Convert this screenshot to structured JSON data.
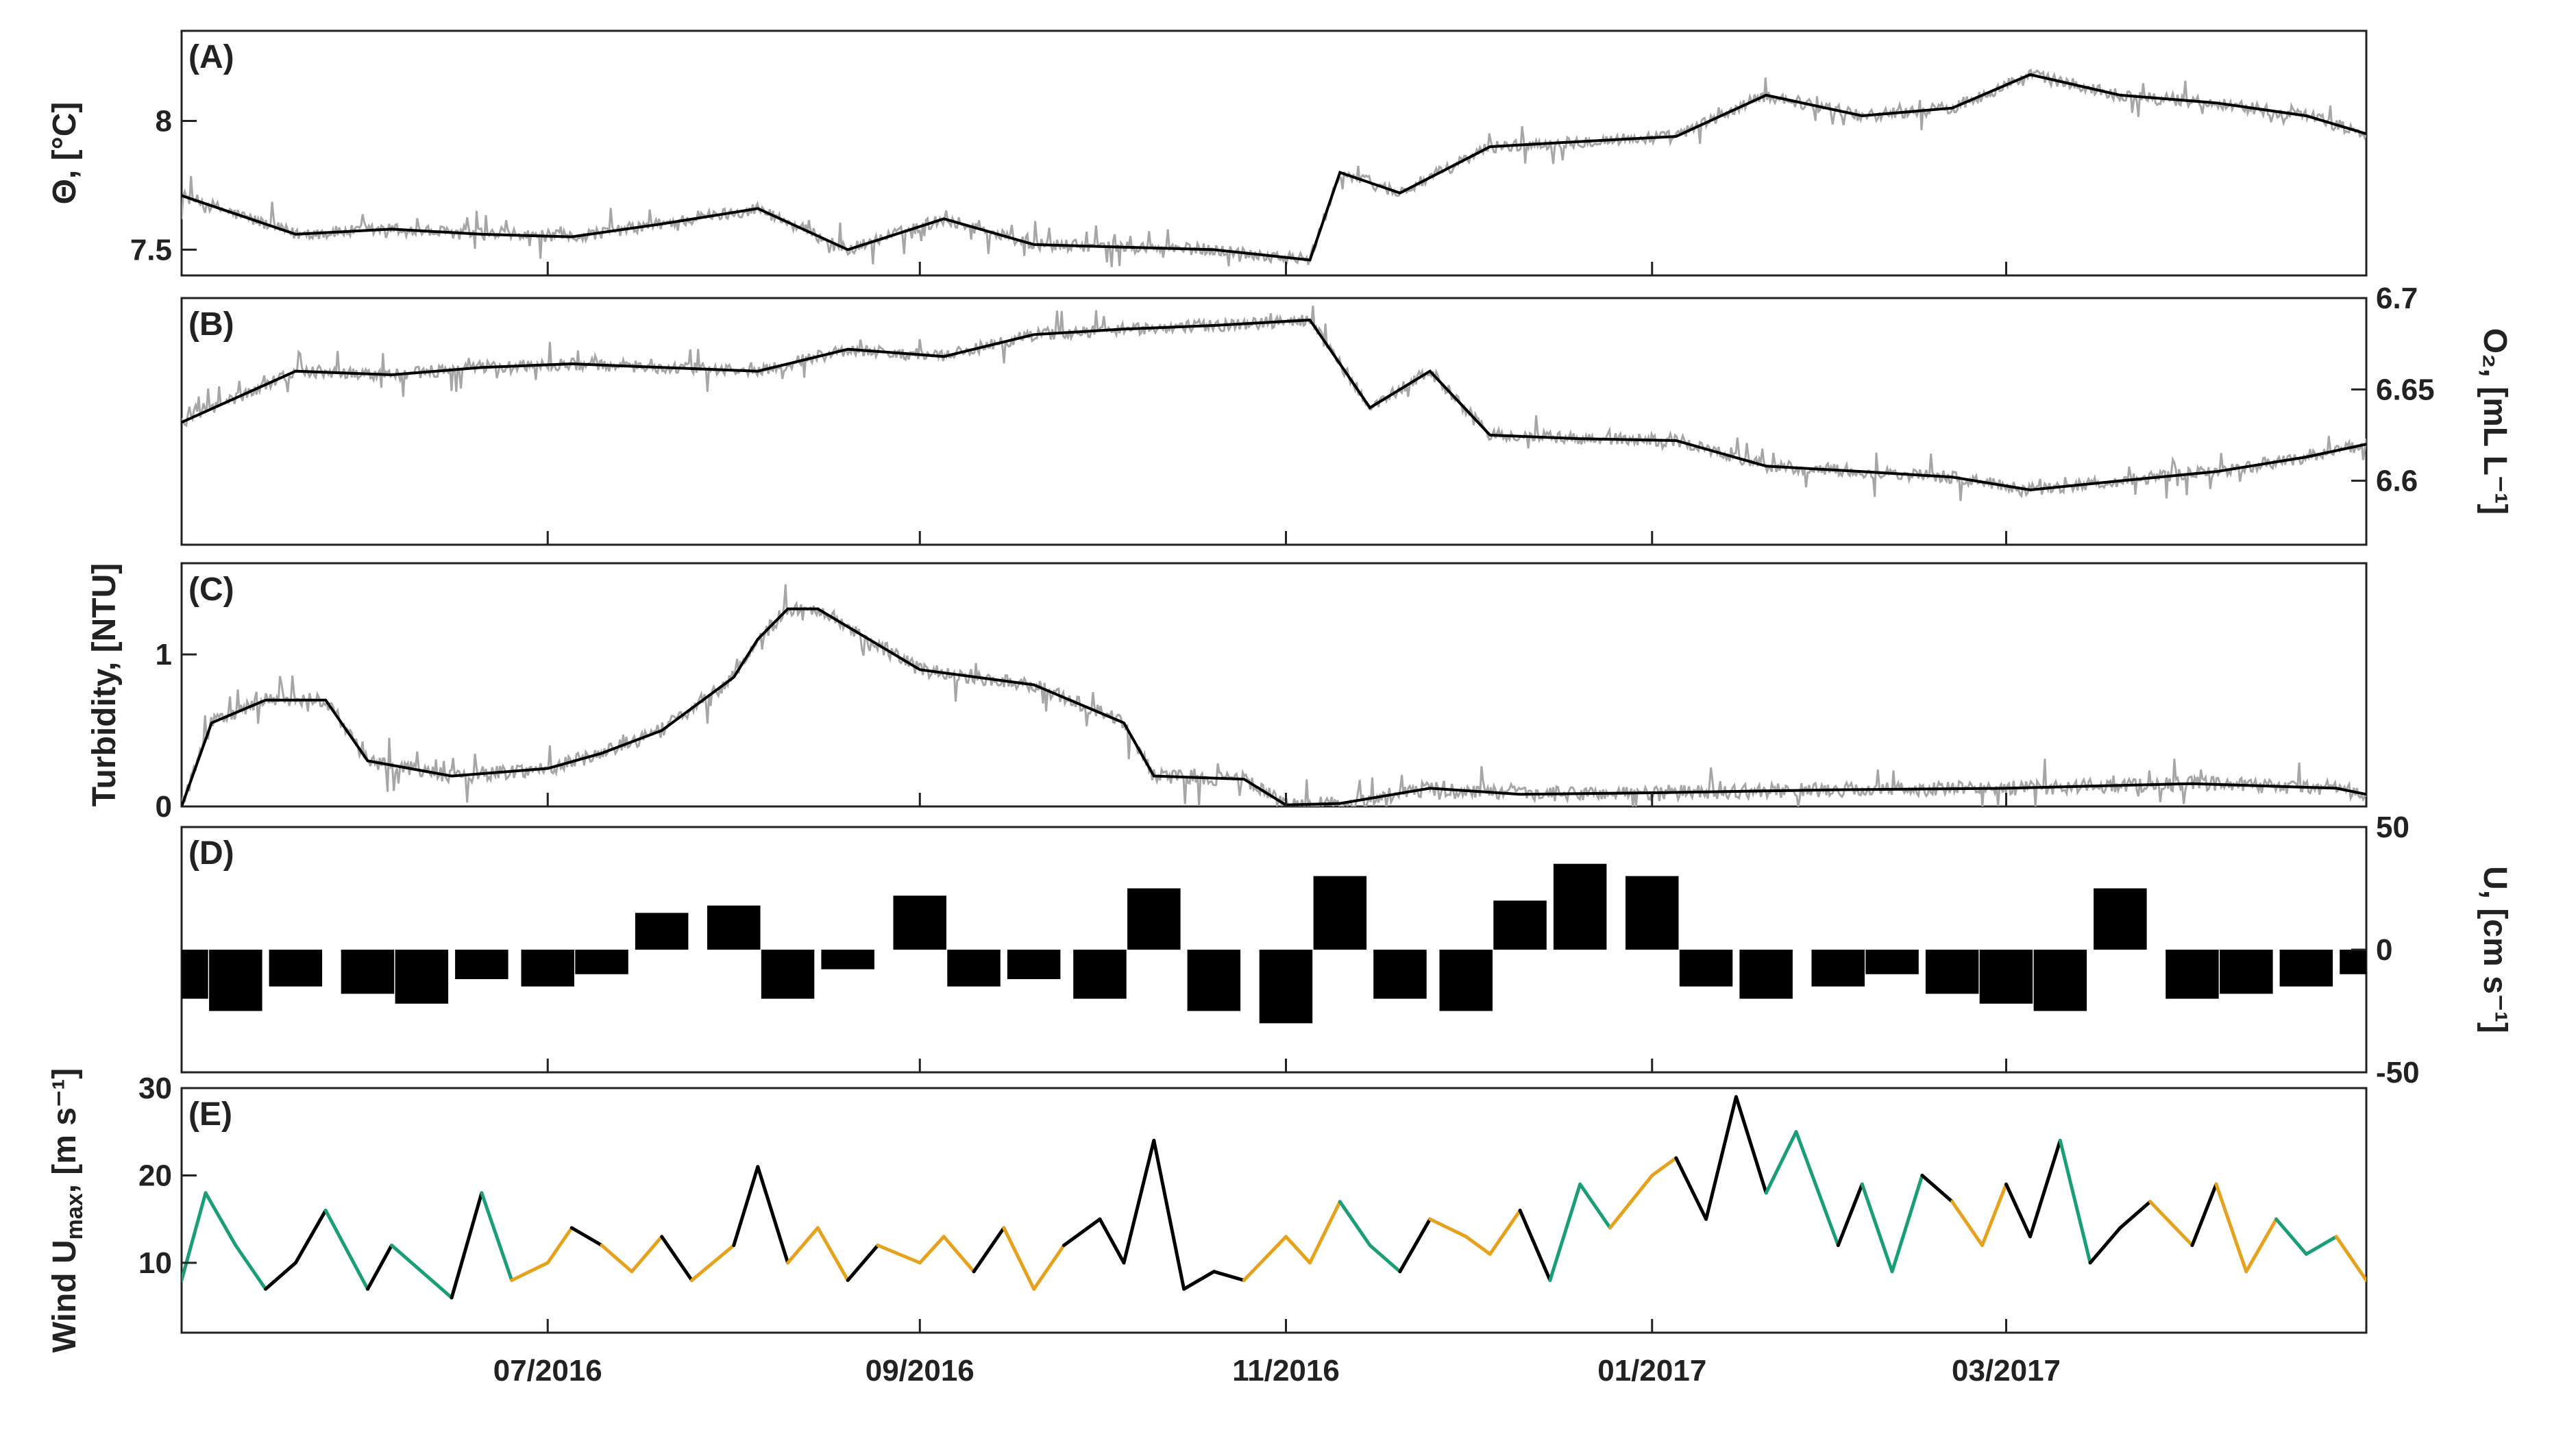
{
  "chart_data": [
    {
      "id": "A",
      "type": "line",
      "panel_label": "(A)",
      "ylabel": "Θ, [°C]",
      "ylabel_side": "left",
      "ylim": [
        7.4,
        8.35
      ],
      "yticks": [
        {
          "value": 7.5,
          "label": "7.5"
        },
        {
          "value": 8,
          "label": "8"
        }
      ],
      "raw_color": "#a6a6a6",
      "smooth_color": "#000000",
      "x": [
        "2016-05-01",
        "2016-05-20",
        "2016-06-05",
        "2016-06-20",
        "2016-07-05",
        "2016-07-20",
        "2016-08-05",
        "2016-08-20",
        "2016-09-05",
        "2016-09-20",
        "2016-10-05",
        "2016-10-20",
        "2016-11-05",
        "2016-11-10",
        "2016-11-20",
        "2016-12-05",
        "2016-12-20",
        "2017-01-05",
        "2017-01-20",
        "2017-02-05",
        "2017-02-20",
        "2017-03-05",
        "2017-03-20",
        "2017-04-05",
        "2017-04-20",
        "2017-04-30"
      ],
      "y": [
        7.71,
        7.56,
        7.58,
        7.56,
        7.55,
        7.6,
        7.66,
        7.5,
        7.62,
        7.52,
        7.51,
        7.5,
        7.46,
        7.8,
        7.72,
        7.9,
        7.92,
        7.94,
        8.1,
        8.02,
        8.05,
        8.18,
        8.1,
        8.07,
        8.02,
        7.95
      ]
    },
    {
      "id": "B",
      "type": "line",
      "panel_label": "(B)",
      "ylabel": "O₂, [mL L⁻¹]",
      "ylabel_side": "right",
      "ylim": [
        6.565,
        6.7
      ],
      "yticks": [
        {
          "value": 6.6,
          "label": "6.6"
        },
        {
          "value": 6.65,
          "label": "6.65"
        },
        {
          "value": 6.7,
          "label": "6.7"
        }
      ],
      "raw_color": "#a6a6a6",
      "smooth_color": "#000000",
      "x": [
        "2016-05-01",
        "2016-05-20",
        "2016-06-05",
        "2016-06-20",
        "2016-07-05",
        "2016-07-20",
        "2016-08-05",
        "2016-08-20",
        "2016-09-05",
        "2016-09-20",
        "2016-10-05",
        "2016-10-20",
        "2016-11-05",
        "2016-11-15",
        "2016-11-25",
        "2016-12-05",
        "2016-12-20",
        "2017-01-05",
        "2017-01-20",
        "2017-02-05",
        "2017-02-20",
        "2017-03-05",
        "2017-03-20",
        "2017-04-05",
        "2017-04-20",
        "2017-04-30"
      ],
      "y": [
        6.632,
        6.66,
        6.658,
        6.662,
        6.664,
        6.662,
        6.66,
        6.672,
        6.668,
        6.68,
        6.683,
        6.685,
        6.688,
        6.64,
        6.66,
        6.625,
        6.623,
        6.622,
        6.608,
        6.605,
        6.602,
        6.595,
        6.6,
        6.605,
        6.613,
        6.62
      ]
    },
    {
      "id": "C",
      "type": "line",
      "panel_label": "(C)",
      "ylabel": "Turbidity, [NTU]",
      "ylabel_side": "left",
      "ylim": [
        0,
        1.6
      ],
      "yticks": [
        {
          "value": 0,
          "label": "0"
        },
        {
          "value": 1,
          "label": "1"
        }
      ],
      "raw_color": "#a6a6a6",
      "smooth_color": "#000000",
      "x": [
        "2016-05-01",
        "2016-05-06",
        "2016-05-15",
        "2016-05-25",
        "2016-06-01",
        "2016-06-15",
        "2016-07-01",
        "2016-07-10",
        "2016-07-20",
        "2016-08-01",
        "2016-08-05",
        "2016-08-10",
        "2016-08-15",
        "2016-09-01",
        "2016-09-20",
        "2016-10-05",
        "2016-10-10",
        "2016-10-25",
        "2016-11-01",
        "2016-11-10",
        "2016-11-25",
        "2016-12-10",
        "2017-01-01",
        "2017-02-01",
        "2017-03-01",
        "2017-04-01",
        "2017-04-25",
        "2017-04-30"
      ],
      "y": [
        0,
        0.55,
        0.7,
        0.7,
        0.3,
        0.2,
        0.25,
        0.35,
        0.5,
        0.85,
        1.1,
        1.3,
        1.3,
        0.9,
        0.8,
        0.55,
        0.2,
        0.18,
        0.01,
        0.02,
        0.12,
        0.08,
        0.09,
        0.11,
        0.12,
        0.15,
        0.12,
        0.08
      ]
    },
    {
      "id": "D",
      "type": "bar",
      "panel_label": "(D)",
      "ylabel": "U, [cm s⁻¹]",
      "ylabel_side": "right",
      "ylim": [
        -50,
        50
      ],
      "yticks": [
        {
          "value": -50,
          "label": "-50"
        },
        {
          "value": 0,
          "label": "0"
        },
        {
          "value": 50,
          "label": "50"
        }
      ],
      "bar_color": "#000000",
      "x": [
        "2016-05-01",
        "2016-05-10",
        "2016-05-20",
        "2016-06-01",
        "2016-06-10",
        "2016-06-20",
        "2016-07-01",
        "2016-07-10",
        "2016-07-20",
        "2016-08-01",
        "2016-08-10",
        "2016-08-20",
        "2016-09-01",
        "2016-09-10",
        "2016-09-20",
        "2016-10-01",
        "2016-10-10",
        "2016-10-20",
        "2016-11-01",
        "2016-11-10",
        "2016-11-20",
        "2016-12-01",
        "2016-12-10",
        "2016-12-20",
        "2017-01-01",
        "2017-01-10",
        "2017-01-20",
        "2017-02-01",
        "2017-02-10",
        "2017-02-20",
        "2017-03-01",
        "2017-03-10",
        "2017-03-20",
        "2017-04-01",
        "2017-04-10",
        "2017-04-20",
        "2017-04-30"
      ],
      "y": [
        -20,
        -25,
        -15,
        -18,
        -22,
        -12,
        -15,
        -10,
        15,
        18,
        -20,
        -8,
        22,
        -15,
        -12,
        -20,
        25,
        -25,
        -30,
        30,
        -20,
        -25,
        20,
        35,
        30,
        -15,
        -20,
        -15,
        -10,
        -18,
        -22,
        -25,
        25,
        -20,
        -18,
        -15,
        -10
      ]
    },
    {
      "id": "E",
      "type": "line",
      "panel_label": "(E)",
      "ylabel": "Wind U",
      "ylabel_sub": "max",
      "ylabel_rest": ", [m s⁻¹]",
      "ylabel_side": "left",
      "ylim": [
        2,
        30
      ],
      "yticks": [
        {
          "value": 10,
          "label": "10"
        },
        {
          "value": 20,
          "label": "20"
        },
        {
          "value": 30,
          "label": "30"
        }
      ],
      "series_colors": [
        "#000000",
        "#1a9e77",
        "#e6a21c"
      ],
      "x": [
        "2016-05-01",
        "2016-05-05",
        "2016-05-10",
        "2016-05-15",
        "2016-05-20",
        "2016-05-25",
        "2016-06-01",
        "2016-06-05",
        "2016-06-10",
        "2016-06-15",
        "2016-06-20",
        "2016-06-25",
        "2016-07-01",
        "2016-07-05",
        "2016-07-10",
        "2016-07-15",
        "2016-07-20",
        "2016-07-25",
        "2016-08-01",
        "2016-08-05",
        "2016-08-10",
        "2016-08-15",
        "2016-08-20",
        "2016-08-25",
        "2016-09-01",
        "2016-09-05",
        "2016-09-10",
        "2016-09-15",
        "2016-09-20",
        "2016-09-25",
        "2016-10-01",
        "2016-10-05",
        "2016-10-10",
        "2016-10-15",
        "2016-10-20",
        "2016-10-25",
        "2016-11-01",
        "2016-11-05",
        "2016-11-10",
        "2016-11-15",
        "2016-11-20",
        "2016-11-25",
        "2016-12-01",
        "2016-12-05",
        "2016-12-10",
        "2016-12-15",
        "2016-12-20",
        "2016-12-25",
        "2017-01-01",
        "2017-01-05",
        "2017-01-10",
        "2017-01-15",
        "2017-01-20",
        "2017-01-25",
        "2017-02-01",
        "2017-02-05",
        "2017-02-10",
        "2017-02-15",
        "2017-02-20",
        "2017-02-25",
        "2017-03-01",
        "2017-03-05",
        "2017-03-10",
        "2017-03-15",
        "2017-03-20",
        "2017-03-25",
        "2017-04-01",
        "2017-04-05",
        "2017-04-10",
        "2017-04-15",
        "2017-04-20",
        "2017-04-25",
        "2017-04-30"
      ],
      "y": [
        8,
        18,
        12,
        7,
        10,
        16,
        7,
        12,
        9,
        6,
        18,
        8,
        10,
        14,
        12,
        9,
        13,
        8,
        12,
        21,
        10,
        14,
        8,
        12,
        10,
        13,
        9,
        14,
        7,
        12,
        15,
        10,
        24,
        7,
        9,
        8,
        13,
        10,
        17,
        12,
        9,
        15,
        13,
        11,
        16,
        8,
        19,
        14,
        20,
        22,
        15,
        29,
        18,
        25,
        12,
        19,
        9,
        20,
        17,
        12,
        19,
        13,
        24,
        10,
        14,
        17,
        12,
        19,
        9,
        15,
        11,
        13,
        8
      ],
      "color_idx": [
        1,
        1,
        1,
        0,
        0,
        1,
        0,
        1,
        1,
        0,
        1,
        2,
        2,
        0,
        2,
        2,
        0,
        2,
        0,
        0,
        2,
        2,
        0,
        2,
        2,
        2,
        0,
        2,
        2,
        0,
        0,
        0,
        0,
        0,
        0,
        2,
        2,
        2,
        1,
        1,
        0,
        2,
        2,
        2,
        0,
        1,
        1,
        2,
        2,
        0,
        0,
        0,
        1,
        1,
        0,
        1,
        1,
        0,
        2,
        2,
        0,
        0,
        1,
        0,
        0,
        2,
        0,
        2,
        2,
        1,
        1,
        2,
        2
      ]
    }
  ],
  "x_axis": {
    "tick_labels": [
      {
        "date": "2016-07-01",
        "label": "07/2016"
      },
      {
        "date": "2016-09-01",
        "label": "09/2016"
      },
      {
        "date": "2016-11-01",
        "label": "11/2016"
      },
      {
        "date": "2017-01-01",
        "label": "01/2017"
      },
      {
        "date": "2017-03-01",
        "label": "03/2017"
      }
    ],
    "range": [
      "2016-05-01",
      "2017-04-30"
    ]
  }
}
